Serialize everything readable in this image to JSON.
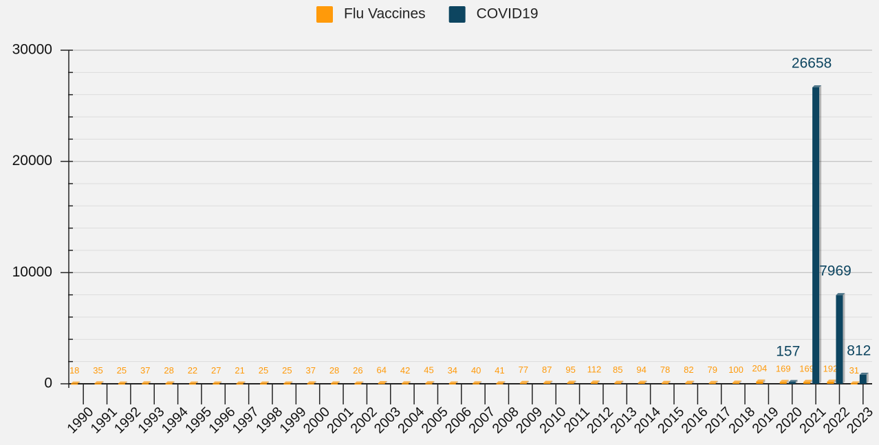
{
  "chart_data": {
    "type": "bar",
    "categories": [
      "1990",
      "1991",
      "1992",
      "1993",
      "1994",
      "1995",
      "1996",
      "1997",
      "1998",
      "1999",
      "2000",
      "2001",
      "2002",
      "2003",
      "2004",
      "2005",
      "2006",
      "2007",
      "2008",
      "2009",
      "2010",
      "2011",
      "2012",
      "2013",
      "2014",
      "2015",
      "2016",
      "2017",
      "2018",
      "2019",
      "2020",
      "2021",
      "2022",
      "2023"
    ],
    "series": [
      {
        "name": "Flu Vaccines",
        "color": "#ff9a0a",
        "values": [
          18,
          35,
          25,
          37,
          28,
          22,
          27,
          21,
          25,
          25,
          37,
          28,
          26,
          64,
          42,
          45,
          34,
          40,
          41,
          77,
          87,
          95,
          112,
          85,
          94,
          78,
          82,
          79,
          100,
          204,
          169,
          169,
          192,
          31
        ]
      },
      {
        "name": "COVID19",
        "color": "#0d4560",
        "values": [
          null,
          null,
          null,
          null,
          null,
          null,
          null,
          null,
          null,
          null,
          null,
          null,
          null,
          null,
          null,
          null,
          null,
          null,
          null,
          null,
          null,
          null,
          null,
          null,
          null,
          null,
          null,
          null,
          null,
          null,
          157,
          26658,
          7969,
          812
        ]
      }
    ],
    "ylim": [
      0,
      30000
    ],
    "yticks": [
      0,
      10000,
      20000,
      30000
    ],
    "grid": true,
    "legend": "top"
  }
}
